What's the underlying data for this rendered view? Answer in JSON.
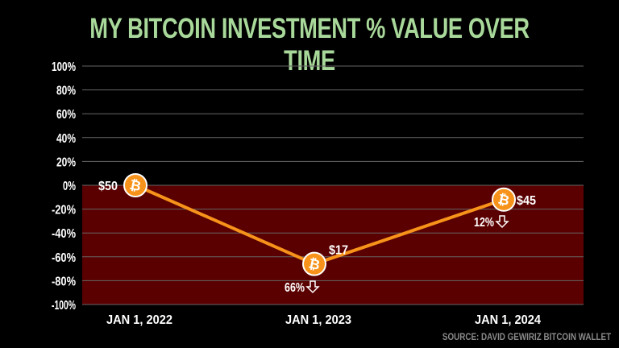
{
  "title": "MY BITCOIN INVESTMENT % VALUE OVER TIME",
  "source": "SOURCE: DAVID GEWIRIZ BITCOIN WALLET",
  "colors": {
    "background": "#000000",
    "negative_band": "#5a0000",
    "line": "#f7931a",
    "title": "#a8d89a",
    "grid": "#666666"
  },
  "icons": {
    "marker": "bitcoin-icon",
    "down": "down-arrow-icon"
  },
  "chart_data": {
    "type": "line",
    "categories": [
      "JAN 1, 2022",
      "JAN 1, 2023",
      "JAN 1, 2024"
    ],
    "values": [
      0,
      -66,
      -12
    ],
    "ylim": [
      -100,
      100
    ],
    "yticks": [
      "100%",
      "80%",
      "60%",
      "40%",
      "20%",
      "0%",
      "-20%",
      "-40%",
      "-60%",
      "-80%",
      "-100%"
    ],
    "grid": true,
    "point_labels": [
      "$50",
      "$17",
      "$45"
    ],
    "change_labels": [
      "",
      "66%",
      "12%"
    ]
  }
}
